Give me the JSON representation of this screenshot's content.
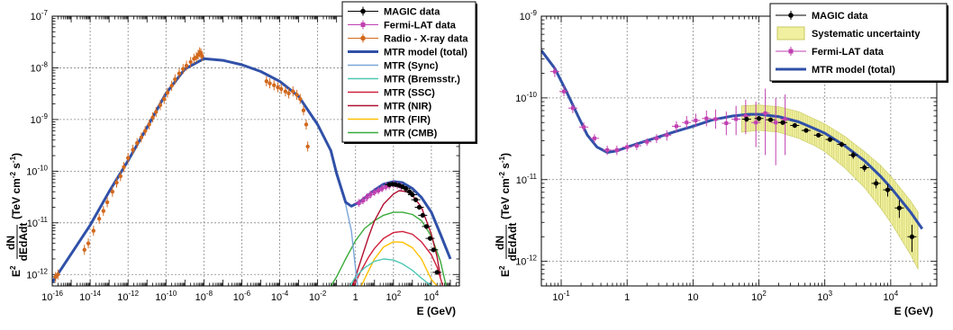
{
  "figure": {
    "colors": {
      "magic": "#000000",
      "fermi": "#c040b0",
      "radio": "#d2691e",
      "total": "#3050a8",
      "sync": "#7aa6d8",
      "brems": "#50c8b4",
      "ssc": "#d0203c",
      "nir": "#b01030",
      "fir": "#ffc000",
      "cmb": "#3aaa3a",
      "syst": "#f0f0a0"
    }
  },
  "chart_data": [
    {
      "type": "line",
      "xlabel": "E (GeV)",
      "ylabel_prefix": "E",
      "ylabel_exp": "2",
      "ylabel_num": "dN",
      "ylabel_den": "dEdAdt",
      "ylabel_unit": "(TeV cm",
      "ylabel_unit_exp": "-2",
      "ylabel_unit_tail": "s",
      "ylabel_unit_exp2": "-1",
      "ylabel_unit_close": ")",
      "xscale": "log",
      "yscale": "log",
      "xlim": [
        1e-16,
        300000.0
      ],
      "ylim": [
        6e-13,
        1e-07
      ],
      "grid": true,
      "legend_position": "top-right",
      "xtick_labels": [
        {
          "base": "10",
          "exp": "-16",
          "val": 1e-16
        },
        {
          "base": "10",
          "exp": "-14",
          "val": 1e-14
        },
        {
          "base": "10",
          "exp": "-12",
          "val": 1e-12
        },
        {
          "base": "10",
          "exp": "-10",
          "val": 1e-10
        },
        {
          "base": "10",
          "exp": "-8",
          "val": 1e-08
        },
        {
          "base": "10",
          "exp": "-6",
          "val": 1e-06
        },
        {
          "base": "10",
          "exp": "-4",
          "val": 0.0001
        },
        {
          "base": "10",
          "exp": "-2",
          "val": 0.01
        },
        {
          "base": "1",
          "exp": "",
          "val": 1
        },
        {
          "base": "10",
          "exp": "2",
          "val": 100
        },
        {
          "base": "10",
          "exp": "4",
          "val": 10000.0
        }
      ],
      "ytick_labels": [
        {
          "base": "10",
          "exp": "-12",
          "val": 1e-12
        },
        {
          "base": "10",
          "exp": "-11",
          "val": 1e-11
        },
        {
          "base": "10",
          "exp": "-10",
          "val": 1e-10
        },
        {
          "base": "10",
          "exp": "-9",
          "val": 1e-09
        },
        {
          "base": "10",
          "exp": "-8",
          "val": 1e-08
        },
        {
          "base": "10",
          "exp": "-7",
          "val": 1e-07
        }
      ],
      "legend": [
        {
          "label": "MAGIC data",
          "kind": "marker",
          "color": "#000000"
        },
        {
          "label": "Fermi-LAT data",
          "kind": "marker",
          "color": "#c040b0"
        },
        {
          "label": "Radio - X-ray data",
          "kind": "marker",
          "color": "#d2691e"
        },
        {
          "label": "MTR model (total)",
          "kind": "line",
          "color": "#3050a8",
          "width": 3
        },
        {
          "label": "MTR (Sync)",
          "kind": "line",
          "color": "#7aa6d8",
          "width": 1.5
        },
        {
          "label": "MTR (Bremsstr.)",
          "kind": "line",
          "color": "#50c8b4",
          "width": 1.5
        },
        {
          "label": "MTR (SSC)",
          "kind": "line",
          "color": "#d0203c",
          "width": 1.5
        },
        {
          "label": "MTR (NIR)",
          "kind": "line",
          "color": "#b01030",
          "width": 1.5
        },
        {
          "label": "MTR (FIR)",
          "kind": "line",
          "color": "#ffc000",
          "width": 1.5
        },
        {
          "label": "MTR (CMB)",
          "kind": "line",
          "color": "#3aaa3a",
          "width": 1.5
        }
      ],
      "series": [
        {
          "name": "MTR model (total)",
          "color": "#3050a8",
          "width": 3,
          "x": [
            1e-16,
            1e-15,
            1e-14,
            1e-13,
            1e-12,
            1e-11,
            1e-10,
            1e-09,
            1e-08,
            1e-07,
            1e-06,
            1e-05,
            0.0001,
            0.001,
            0.01,
            0.05,
            0.1,
            0.3,
            0.6,
            1,
            2,
            5,
            10,
            30,
            100,
            300,
            1000,
            3000,
            10000.0,
            30000.0,
            100000.0
          ],
          "y": [
            7e-13,
            2.5e-12,
            9e-12,
            4e-11,
            1.6e-10,
            7e-10,
            3.2e-09,
            9.5e-09,
            1.5e-08,
            1.4e-08,
            1.15e-08,
            8.5e-09,
            5.5e-09,
            2.8e-09,
            8e-10,
            2.5e-10,
            9e-11,
            2.5e-11,
            2.1e-11,
            2.3e-11,
            2.7e-11,
            3.5e-11,
            4.3e-11,
            5.6e-11,
            6.3e-11,
            6e-11,
            4.6e-11,
            3.1e-11,
            1.6e-11,
            6e-12,
            2e-12
          ]
        },
        {
          "name": "MTR (Sync)",
          "color": "#7aa6d8",
          "width": 1.4,
          "x": [
            0.01,
            0.05,
            0.1,
            0.3,
            0.6,
            0.9,
            1.3
          ],
          "y": [
            8e-10,
            2.5e-10,
            9e-11,
            2.3e-11,
            7e-12,
            1.8e-12,
            6e-13
          ]
        },
        {
          "name": "MTR (Bremsstr.)",
          "color": "#50c8b4",
          "width": 1.4,
          "x": [
            0.5,
            1,
            3,
            10,
            30,
            100,
            300,
            1000,
            3000,
            10000.0
          ],
          "y": [
            6e-13,
            9e-13,
            1.35e-12,
            1.8e-12,
            2e-12,
            1.9e-12,
            1.6e-12,
            1.2e-12,
            8.5e-13,
            6e-13
          ]
        },
        {
          "name": "MTR (SSC)",
          "color": "#d0203c",
          "width": 1.4,
          "x": [
            0.8,
            2,
            5,
            10,
            30,
            100,
            300,
            1000,
            3000,
            10000.0,
            20000.0,
            40000.0
          ],
          "y": [
            6e-13,
            1.2e-12,
            2.2e-12,
            3.2e-12,
            5e-12,
            6.5e-12,
            6.8e-12,
            6e-12,
            4.3e-12,
            2.4e-12,
            1.4e-12,
            6e-13
          ]
        },
        {
          "name": "MTR (NIR)",
          "color": "#b01030",
          "width": 1.4,
          "x": [
            0.7,
            2,
            5,
            10,
            30,
            100,
            200,
            500,
            1000,
            3000,
            10000.0,
            20000.0,
            30000.0
          ],
          "y": [
            6e-13,
            2e-12,
            5.5e-12,
            1.1e-11,
            2.3e-11,
            3.6e-11,
            4.2e-11,
            4e-11,
            3.4e-11,
            2e-11,
            6e-12,
            2.2e-12,
            9e-13
          ]
        },
        {
          "name": "MTR (FIR)",
          "color": "#ffc000",
          "width": 1.4,
          "x": [
            2,
            5,
            10,
            30,
            100,
            300,
            1000,
            3000,
            10000.0,
            20000.0
          ],
          "y": [
            6e-13,
            1.2e-12,
            2e-12,
            3.4e-12,
            4.3e-12,
            4.2e-12,
            3.3e-12,
            2e-12,
            8e-13,
            6e-13
          ]
        },
        {
          "name": "MTR (CMB)",
          "color": "#3aaa3a",
          "width": 1.4,
          "x": [
            0.05,
            0.1,
            0.3,
            1,
            3,
            10,
            30,
            100,
            300,
            1000,
            3000,
            10000.0,
            30000.0,
            60000.0
          ],
          "y": [
            6e-13,
            9e-13,
            2e-12,
            4.5e-12,
            7.8e-12,
            1.1e-11,
            1.4e-11,
            1.6e-11,
            1.6e-11,
            1.45e-11,
            1.1e-11,
            5.5e-12,
            1.8e-12,
            6e-13
          ]
        }
      ],
      "radio_xray_points": {
        "color": "#d2691e",
        "x": [
          1.5e-16,
          2e-16,
          5e-15,
          8e-15,
          1.5e-14,
          3e-14,
          5e-14,
          8e-14,
          1.5e-13,
          2.5e-13,
          4e-13,
          6e-13,
          1e-12,
          1.8e-12,
          3e-12,
          5e-12,
          8e-12,
          1.3e-11,
          2e-11,
          3e-11,
          5e-11,
          8e-11,
          1.2e-10,
          2e-10,
          3e-10,
          5e-10,
          8e-10,
          1.2e-09,
          2e-09,
          3e-09,
          4e-09,
          5e-09,
          6e-09,
          7e-09,
          8e-09,
          2e-05,
          3e-05,
          5e-05,
          8e-05,
          0.00012,
          0.0002,
          0.0003,
          0.0005,
          0.0008,
          0.0012,
          0.0018,
          0.0025,
          0.003
        ],
        "y": [
          9e-13,
          1e-12,
          3e-12,
          4e-12,
          7e-12,
          1.2e-11,
          1.7e-11,
          2.5e-11,
          4e-11,
          6e-11,
          8e-11,
          1.2e-10,
          1.8e-10,
          2.6e-10,
          3.5e-10,
          4.5e-10,
          6e-10,
          8e-10,
          1.1e-09,
          1.4e-09,
          1.9e-09,
          2.5e-09,
          3.3e-09,
          4.5e-09,
          6e-09,
          7.8e-09,
          9.5e-09,
          1.1e-08,
          1.3e-08,
          1.5e-08,
          1.6e-08,
          1.8e-08,
          2e-08,
          1.9e-08,
          1.7e-08,
          5.5e-09,
          5e-09,
          4.6e-09,
          4.2e-09,
          3.9e-09,
          3.5e-09,
          3.2e-09,
          3.5e-09,
          3e-09,
          2.5e-09,
          1.5e-09,
          8e-10,
          3e-10
        ]
      },
      "fermi_points": {
        "color": "#c040b0",
        "x": [
          1.5,
          2.5,
          4,
          6,
          10,
          16,
          25,
          40,
          60,
          100,
          160,
          250
        ],
        "y": [
          2.4e-11,
          2.7e-11,
          3.1e-11,
          3.5e-11,
          3.9e-11,
          4.2e-11,
          4.6e-11,
          5e-11,
          5.2e-11,
          5.5e-11,
          5.3e-11,
          5e-11
        ]
      },
      "magic_points": {
        "color": "#000000",
        "x": [
          60,
          90,
          130,
          200,
          300,
          450,
          700,
          1000,
          1500,
          2300,
          3500,
          5500,
          8500,
          13000,
          20000
        ],
        "y": [
          5.5e-11,
          5.6e-11,
          5.5e-11,
          5.3e-11,
          5e-11,
          4.6e-11,
          4e-11,
          3.5e-11,
          2.8e-11,
          2e-11,
          1.4e-11,
          8.5e-12,
          5e-12,
          3e-12,
          1.1e-12
        ]
      }
    },
    {
      "type": "line",
      "xlabel": "E (GeV)",
      "ylabel_prefix": "E",
      "ylabel_exp": "2",
      "ylabel_num": "dN",
      "ylabel_den": "dEdAdt",
      "ylabel_unit": "(TeV cm",
      "ylabel_unit_exp": "-2",
      "ylabel_unit_tail": "s",
      "ylabel_unit_exp2": "-1",
      "ylabel_unit_close": ")",
      "xscale": "log",
      "yscale": "log",
      "xlim": [
        0.05,
        50000
      ],
      "ylim": [
        5e-13,
        1e-09
      ],
      "grid": true,
      "legend_position": "top-right",
      "xtick_labels": [
        {
          "base": "10",
          "exp": "-1",
          "val": 0.1
        },
        {
          "base": "1",
          "exp": "",
          "val": 1
        },
        {
          "base": "10",
          "exp": "",
          "val": 10
        },
        {
          "base": "10",
          "exp": "2",
          "val": 100
        },
        {
          "base": "10",
          "exp": "3",
          "val": 1000
        },
        {
          "base": "10",
          "exp": "4",
          "val": 10000
        }
      ],
      "ytick_labels": [
        {
          "base": "10",
          "exp": "-12",
          "val": 1e-12
        },
        {
          "base": "10",
          "exp": "-11",
          "val": 1e-11
        },
        {
          "base": "10",
          "exp": "-10",
          "val": 1e-10
        },
        {
          "base": "10",
          "exp": "-9",
          "val": 1e-09
        }
      ],
      "legend": [
        {
          "label": "MAGIC data",
          "kind": "marker",
          "color": "#000000"
        },
        {
          "label": "Systematic uncertainty",
          "kind": "box",
          "color": "#f0f0a0"
        },
        {
          "label": "Fermi-LAT data",
          "kind": "marker",
          "color": "#c040b0"
        },
        {
          "label": "MTR model (total)",
          "kind": "line",
          "color": "#3050a8",
          "width": 3
        }
      ],
      "series": [
        {
          "name": "MTR model (total)",
          "color": "#3050a8",
          "width": 3,
          "x": [
            0.05,
            0.08,
            0.12,
            0.18,
            0.25,
            0.35,
            0.5,
            0.7,
            1,
            2,
            5,
            10,
            20,
            40,
            70,
            100,
            200,
            400,
            700,
            1000,
            2000,
            4000,
            7000,
            10000,
            20000,
            30000
          ],
          "y": [
            3.8e-10,
            2.3e-10,
            1.2e-10,
            6e-11,
            3.5e-11,
            2.5e-11,
            2.15e-11,
            2.25e-11,
            2.5e-11,
            3e-11,
            3.8e-11,
            4.5e-11,
            5.4e-11,
            6e-11,
            6.3e-11,
            6.3e-11,
            5.9e-11,
            5.1e-11,
            4.2e-11,
            3.7e-11,
            2.6e-11,
            1.7e-11,
            1.1e-11,
            8e-12,
            4e-12,
            2.5e-12
          ]
        }
      ],
      "systematic_band": {
        "color": "#f0f0a0",
        "x": [
          55,
          100,
          200,
          400,
          700,
          1000,
          2000,
          4000,
          7000,
          10000,
          20000,
          26000
        ],
        "low": [
          3.8e-11,
          4e-11,
          3.8e-11,
          3.2e-11,
          2.6e-11,
          2.2e-11,
          1.4e-11,
          8e-12,
          4.5e-12,
          3e-12,
          1.2e-12,
          8e-13
        ],
        "high": [
          8e-11,
          8.2e-11,
          7.8e-11,
          6.8e-11,
          5.5e-11,
          4.8e-11,
          3.4e-11,
          2.2e-11,
          1.5e-11,
          1.1e-11,
          5.5e-12,
          4e-12
        ]
      },
      "fermi_points": {
        "color": "#c040b0",
        "x": [
          0.08,
          0.11,
          0.15,
          0.22,
          0.32,
          0.5,
          0.7,
          1,
          1.4,
          2,
          2.8,
          4,
          5.6,
          8,
          11,
          16,
          22,
          32,
          45,
          63,
          90,
          125,
          180,
          250
        ],
        "y": [
          2.1e-10,
          1.2e-10,
          7.5e-11,
          4.4e-11,
          3.2e-11,
          2.3e-11,
          2.3e-11,
          2.5e-11,
          2.6e-11,
          2.9e-11,
          3.2e-11,
          3.5e-11,
          4.5e-11,
          5e-11,
          5.3e-11,
          5.6e-11,
          5.5e-11,
          4.9e-11,
          5.5e-11,
          6e-11,
          5e-11,
          6.5e-11,
          5e-11,
          5.5e-11
        ],
        "err_low": [
          1.8e-10,
          1.05e-10,
          6.5e-11,
          3.9e-11,
          2.8e-11,
          2e-11,
          2e-11,
          2.2e-11,
          2.3e-11,
          2.6e-11,
          2.8e-11,
          3e-11,
          3.8e-11,
          4.2e-11,
          4.4e-11,
          4.5e-11,
          4.2e-11,
          3.5e-11,
          3.5e-11,
          3.6e-11,
          2.5e-11,
          2e-11,
          1.5e-11,
          2e-11
        ],
        "err_high": [
          2.4e-10,
          1.4e-10,
          8.5e-11,
          5e-11,
          3.6e-11,
          2.6e-11,
          2.6e-11,
          2.8e-11,
          2.9e-11,
          3.2e-11,
          3.6e-11,
          4e-11,
          5.2e-11,
          6e-11,
          6.4e-11,
          7e-11,
          7.2e-11,
          6.8e-11,
          8e-11,
          9.5e-11,
          9e-11,
          1.3e-10,
          1e-10,
          1.1e-10
        ]
      },
      "magic_points": {
        "color": "#000000",
        "x": [
          65,
          100,
          150,
          230,
          350,
          520,
          800,
          1200,
          1800,
          2700,
          4000,
          6000,
          9000,
          13500,
          21000
        ],
        "y": [
          5.5e-11,
          5.6e-11,
          5.4e-11,
          5e-11,
          4.6e-11,
          4e-11,
          3.5e-11,
          3.1e-11,
          2.7e-11,
          2e-11,
          1.4e-11,
          9e-12,
          7.5e-12,
          4.5e-12,
          2e-12
        ],
        "err_low": [
          5.1e-11,
          5.2e-11,
          5.1e-11,
          4.7e-11,
          4.3e-11,
          3.8e-11,
          3.3e-11,
          2.9e-11,
          2.5e-11,
          1.8e-11,
          1.25e-11,
          7.8e-12,
          6.2e-12,
          3.4e-12,
          1.3e-12
        ],
        "err_high": [
          5.9e-11,
          6e-11,
          5.7e-11,
          5.3e-11,
          4.9e-11,
          4.2e-11,
          3.7e-11,
          3.3e-11,
          2.9e-11,
          2.2e-11,
          1.55e-11,
          1.02e-11,
          8.8e-12,
          5.6e-12,
          2.8e-12
        ]
      }
    }
  ]
}
